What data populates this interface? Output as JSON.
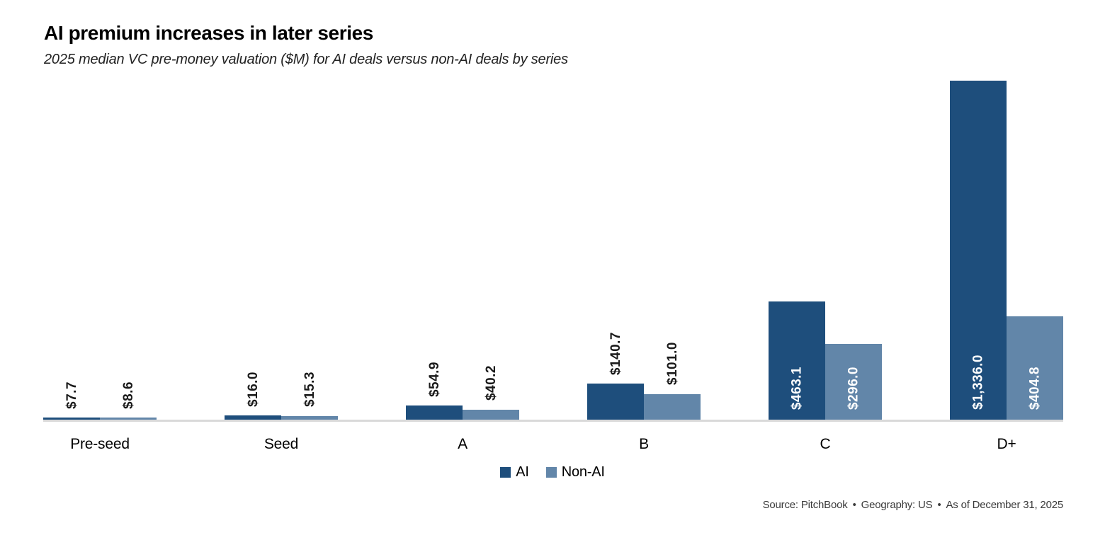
{
  "header": {
    "title": "AI premium increases in later series",
    "subtitle": "2025 median VC pre-money valuation ($M) for AI deals versus non-AI deals by series"
  },
  "chart_data": {
    "type": "bar",
    "title": "AI premium increases in later series",
    "subtitle": "2025 median VC pre-money valuation ($M) for AI deals versus non-AI deals by series",
    "categories": [
      "Pre-seed",
      "Seed",
      "A",
      "B",
      "C",
      "D+"
    ],
    "series": [
      {
        "name": "AI",
        "color": "#1e4e7c",
        "values": [
          7.7,
          16.0,
          54.9,
          140.7,
          463.1,
          1336.0
        ],
        "labels": [
          "$7.7",
          "$16.0",
          "$54.9",
          "$140.7",
          "$463.1",
          "$1,336.0"
        ]
      },
      {
        "name": "Non-AI",
        "color": "#6286a9",
        "values": [
          8.6,
          15.3,
          40.2,
          101.0,
          296.0,
          404.8
        ],
        "labels": [
          "$8.6",
          "$15.3",
          "$40.2",
          "$101.0",
          "$296.0",
          "$404.8"
        ]
      }
    ],
    "xlabel": "",
    "ylabel": "",
    "ylim": [
      0,
      1336
    ],
    "grid": false,
    "axis_line_color": "#d9d9d9",
    "legend_position": "bottom-center",
    "value_label_rotation": 90,
    "label_inside_min_value": 250
  },
  "footer": {
    "parts": [
      "Source: PitchBook",
      "Geography: US",
      "As of December 31, 2025"
    ],
    "separator": "•"
  }
}
